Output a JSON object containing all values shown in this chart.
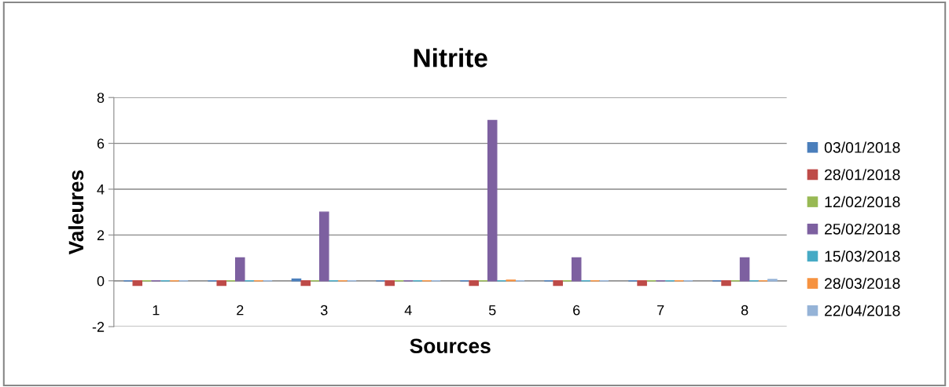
{
  "chart_data": {
    "type": "bar",
    "title": "Nitrite",
    "xlabel": "Sources",
    "ylabel": "Valeures",
    "categories": [
      "1",
      "2",
      "3",
      "4",
      "5",
      "6",
      "7",
      "8"
    ],
    "series": [
      {
        "name": "03/01/2018",
        "color": "#4a7ebb",
        "values": [
          0,
          0,
          0.08,
          0,
          0,
          0,
          0,
          0
        ]
      },
      {
        "name": "28/01/2018",
        "color": "#be4b48",
        "values": [
          -0.2,
          -0.2,
          -0.2,
          -0.2,
          -0.2,
          -0.2,
          -0.2,
          -0.2
        ]
      },
      {
        "name": "12/02/2018",
        "color": "#98b954",
        "values": [
          0,
          0,
          0,
          0,
          0,
          0,
          0,
          0
        ]
      },
      {
        "name": "25/02/2018",
        "color": "#7d60a0",
        "values": [
          0,
          1,
          3,
          0,
          7,
          1,
          0,
          1
        ]
      },
      {
        "name": "15/03/2018",
        "color": "#46aac5",
        "values": [
          0,
          0,
          0,
          0,
          0,
          0,
          0,
          0
        ]
      },
      {
        "name": "28/03/2018",
        "color": "#f69240",
        "values": [
          0,
          0,
          0,
          0,
          0.03,
          0,
          0,
          0
        ]
      },
      {
        "name": "22/04/2018",
        "color": "#95b3d7",
        "values": [
          0,
          0,
          0,
          0,
          0,
          0,
          0,
          0.06
        ]
      }
    ],
    "ylim": [
      -2,
      8
    ],
    "yticks": [
      -2,
      0,
      2,
      4,
      6,
      8
    ],
    "grid": "y",
    "legend": "right"
  }
}
